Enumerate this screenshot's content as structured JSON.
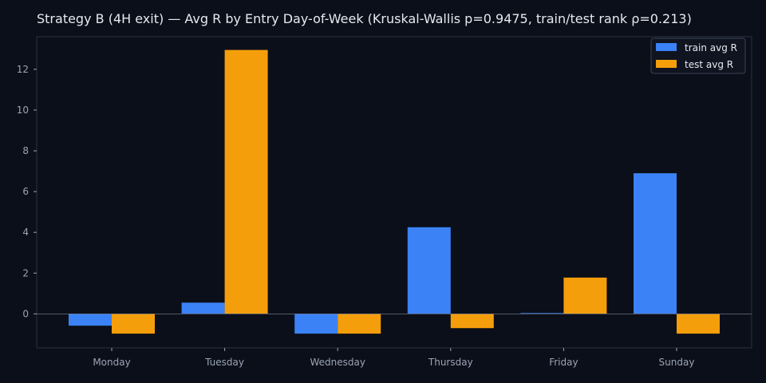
{
  "chart_data": {
    "type": "bar",
    "title": "Strategy B (4H exit) — Avg R by Entry Day-of-Week (Kruskal-Wallis p=0.9475, train/test rank ρ=0.213)",
    "xlabel": "",
    "ylabel": "",
    "categories": [
      "Monday",
      "Tuesday",
      "Wednesday",
      "Thursday",
      "Friday",
      "Sunday"
    ],
    "series": [
      {
        "name": "train avg R",
        "color": "#3b82f6",
        "values": [
          -0.58,
          0.55,
          -0.97,
          4.25,
          0.04,
          6.9
        ]
      },
      {
        "name": "test avg R",
        "color": "#f59e0b",
        "values": [
          -0.97,
          12.95,
          -0.97,
          -0.7,
          1.78,
          -0.97
        ]
      }
    ],
    "ylim": [
      -1.67,
      13.6
    ],
    "yticks": [
      0,
      2,
      4,
      6,
      8,
      10,
      12
    ],
    "legend": "top-right",
    "grid": false,
    "colors": {
      "background": "#0b0f19",
      "axes": "#2a3142",
      "tick_text": "#9aa4b6",
      "title_text": "#e6e9ef"
    }
  }
}
